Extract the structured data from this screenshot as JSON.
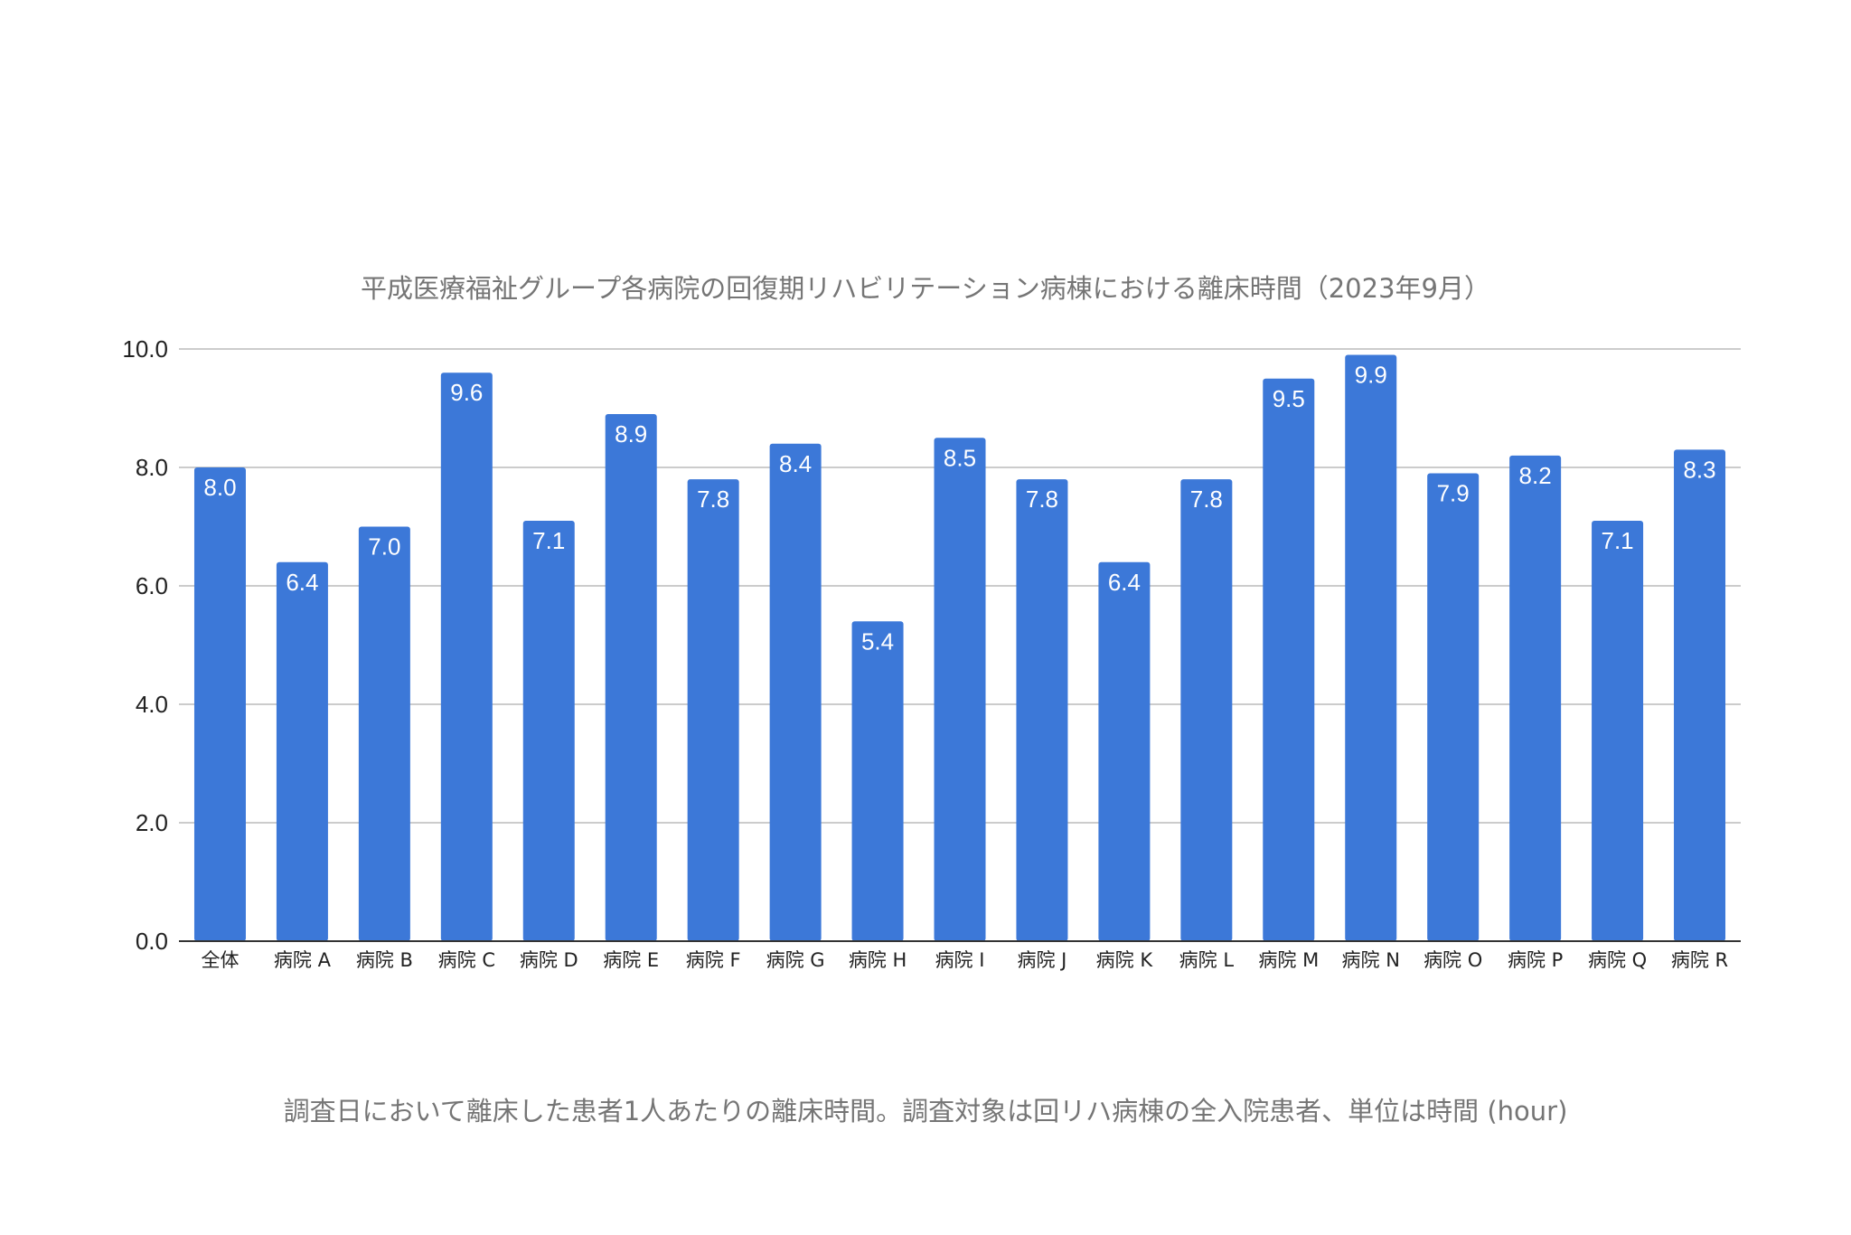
{
  "chart_data": {
    "type": "bar",
    "title": "平成医療福祉グループ各病院の回復期リハビリテーション病棟における離床時間（2023年9月）",
    "caption": "調査日において離床した患者1人あたりの離床時間。調査対象は回リハ病棟の全入院患者、単位は時間 (hour)",
    "categories": [
      "全体",
      "病院 A",
      "病院 B",
      "病院 C",
      "病院 D",
      "病院 E",
      "病院 F",
      "病院 G",
      "病院 H",
      "病院 I",
      "病院 J",
      "病院 K",
      "病院 L",
      "病院 M",
      "病院 N",
      "病院 O",
      "病院 P",
      "病院 Q",
      "病院 R"
    ],
    "values": [
      8.0,
      6.4,
      7.0,
      9.6,
      7.1,
      8.9,
      7.8,
      8.4,
      5.4,
      8.5,
      7.8,
      6.4,
      7.8,
      9.5,
      9.9,
      7.9,
      8.2,
      7.1,
      8.3
    ],
    "value_labels": [
      "8.0",
      "6.4",
      "7.0",
      "9.6",
      "7.1",
      "8.9",
      "7.8",
      "8.4",
      "5.4",
      "8.5",
      "7.8",
      "6.4",
      "7.8",
      "9.5",
      "9.9",
      "7.9",
      "8.2",
      "7.1",
      "8.3"
    ],
    "xlabel": "",
    "ylabel": "",
    "ylim": [
      0,
      10
    ],
    "yticks": [
      "0.0",
      "2.0",
      "4.0",
      "6.0",
      "8.0",
      "10.0"
    ],
    "grid": true,
    "legend": "none",
    "colors": {
      "bar": "#3c78d8",
      "grid": "#cccccc",
      "axis": "#333333",
      "title": "#757575",
      "tick_label": "#222222",
      "value_label": "#ffffff"
    }
  }
}
